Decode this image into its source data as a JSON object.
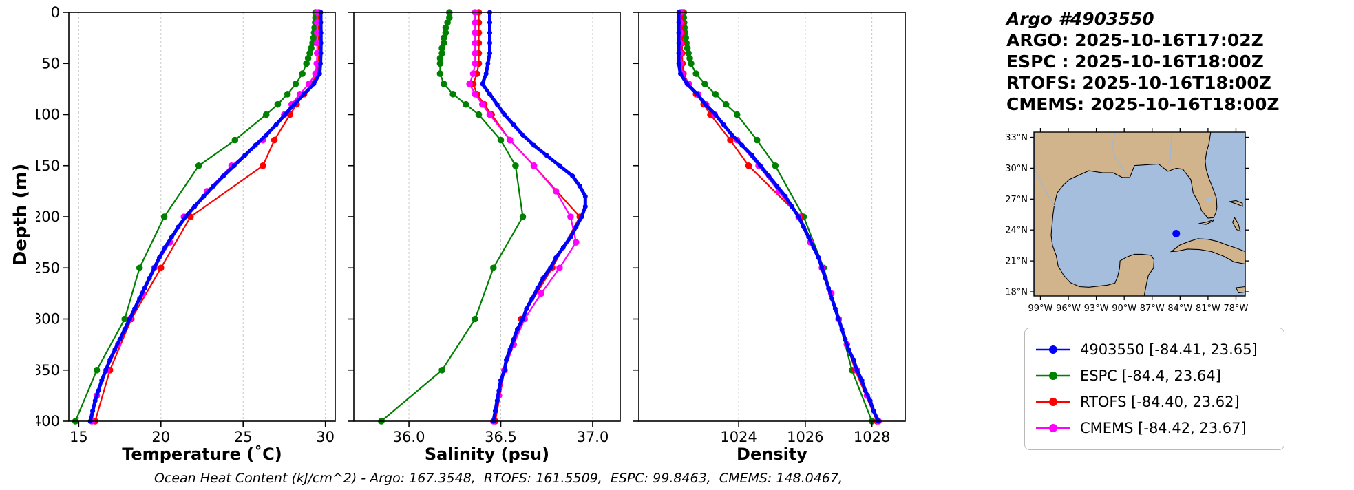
{
  "header": {
    "title": "Argo #4903550",
    "lines": [
      "ARGO: 2025-10-16T17:02Z",
      "ESPC : 2025-10-16T18:00Z",
      "RTOFS: 2025-10-16T18:00Z",
      "CMEMS: 2025-10-16T18:00Z"
    ]
  },
  "caption": "Ocean Heat Content (kJ/cm^2) - Argo: 167.3548,  RTOFS: 161.5509,  ESPC: 99.8463,  CMEMS: 148.0467,",
  "legend": {
    "items": [
      {
        "label": "4903550 [-84.41, 23.65]",
        "color": "#0000ff"
      },
      {
        "label": "ESPC [-84.4, 23.64]",
        "color": "#008000"
      },
      {
        "label": "RTOFS [-84.40, 23.62]",
        "color": "#ff0000"
      },
      {
        "label": "CMEMS [-84.42, 23.67]",
        "color": "#ff00ff"
      }
    ]
  },
  "map": {
    "lon_ticks": [
      "99°W",
      "96°W",
      "93°W",
      "90°W",
      "87°W",
      "84°W",
      "81°W",
      "78°W"
    ],
    "lat_ticks": [
      "33°N",
      "30°N",
      "27°N",
      "24°N",
      "21°N",
      "18°N"
    ],
    "float": {
      "lon": -84.41,
      "lat": 23.65,
      "color": "#0000ff"
    },
    "land_color": "#d2b48c",
    "water_color": "#a6bedd"
  },
  "chart_data": {
    "type": "line",
    "ylabel": "Depth (m)",
    "ylim": [
      0,
      400
    ],
    "depth_ticks": [
      0,
      50,
      100,
      150,
      200,
      250,
      300,
      350,
      400
    ],
    "grid": "vertical-dashed",
    "panels": [
      {
        "key": "temperature",
        "xlabel": "Temperature (˚C)",
        "xlim": [
          14.4,
          30.6
        ],
        "xticks": [
          15,
          20,
          25,
          30
        ],
        "xtick_labels": [
          "15",
          "20",
          "25",
          "30"
        ]
      },
      {
        "key": "salinity",
        "xlabel": "Salinity (psu)",
        "xlim": [
          35.7,
          37.15
        ],
        "xticks": [
          36.0,
          36.5,
          37.0
        ],
        "xtick_labels": [
          "36.0",
          "36.5",
          "37.0"
        ]
      },
      {
        "key": "density",
        "xlabel": "Density",
        "xlim": [
          1021.0,
          1029.0
        ],
        "xticks": [
          1024,
          1026,
          1028
        ],
        "xtick_labels": [
          "1024",
          "1026",
          "1028"
        ]
      }
    ],
    "series": [
      {
        "name": "4903550",
        "color": "#0000ff",
        "linewidth": 5,
        "marker_r": 3.5,
        "depth": [
          0,
          10,
          20,
          30,
          40,
          50,
          60,
          70,
          80,
          90,
          100,
          110,
          120,
          130,
          140,
          150,
          160,
          170,
          180,
          190,
          200,
          210,
          220,
          230,
          240,
          250,
          260,
          270,
          280,
          290,
          300,
          310,
          320,
          330,
          340,
          350,
          360,
          370,
          380,
          390,
          400
        ],
        "temperature": [
          29.72,
          29.72,
          29.73,
          29.73,
          29.72,
          29.7,
          29.65,
          29.3,
          28.7,
          28.1,
          27.55,
          27.0,
          26.4,
          25.75,
          25.1,
          24.45,
          23.8,
          23.2,
          22.6,
          22.05,
          21.5,
          21.05,
          20.65,
          20.25,
          19.9,
          19.6,
          19.3,
          19.0,
          18.7,
          18.4,
          18.1,
          17.8,
          17.5,
          17.2,
          16.9,
          16.65,
          16.4,
          16.2,
          16.0,
          15.85,
          15.7
        ],
        "salinity": [
          36.44,
          36.44,
          36.44,
          36.44,
          36.44,
          36.43,
          36.42,
          36.4,
          36.44,
          36.48,
          36.52,
          36.57,
          36.62,
          36.68,
          36.75,
          36.82,
          36.89,
          36.93,
          36.96,
          36.96,
          36.94,
          36.91,
          36.88,
          36.84,
          36.8,
          36.77,
          36.73,
          36.7,
          36.67,
          36.64,
          36.62,
          36.59,
          36.57,
          36.55,
          36.53,
          36.52,
          36.5,
          36.49,
          36.48,
          36.47,
          36.46
        ],
        "density": [
          1022.2,
          1022.2,
          1022.2,
          1022.2,
          1022.2,
          1022.2,
          1022.25,
          1022.45,
          1022.75,
          1023.0,
          1023.3,
          1023.55,
          1023.8,
          1024.1,
          1024.4,
          1024.65,
          1024.9,
          1025.15,
          1025.4,
          1025.6,
          1025.8,
          1025.95,
          1026.1,
          1026.25,
          1026.4,
          1026.5,
          1026.6,
          1026.7,
          1026.8,
          1026.9,
          1027.0,
          1027.1,
          1027.2,
          1027.3,
          1027.45,
          1027.55,
          1027.7,
          1027.8,
          1027.95,
          1028.05,
          1028.2
        ]
      },
      {
        "name": "ESPC",
        "color": "#008000",
        "linewidth": 2.2,
        "marker_r": 4.8,
        "depth": [
          0,
          5,
          10,
          15,
          20,
          25,
          30,
          35,
          40,
          45,
          50,
          60,
          70,
          80,
          90,
          100,
          125,
          150,
          200,
          250,
          300,
          350,
          400
        ],
        "temperature": [
          29.4,
          29.4,
          29.38,
          29.35,
          29.32,
          29.28,
          29.22,
          29.14,
          29.05,
          28.95,
          28.85,
          28.6,
          28.2,
          27.7,
          27.1,
          26.4,
          24.5,
          22.3,
          20.2,
          18.7,
          17.8,
          16.1,
          14.8
        ],
        "salinity": [
          36.22,
          36.22,
          36.21,
          36.2,
          36.2,
          36.19,
          36.19,
          36.18,
          36.18,
          36.17,
          36.17,
          36.17,
          36.19,
          36.24,
          36.31,
          36.38,
          36.5,
          36.58,
          36.62,
          36.46,
          36.36,
          36.18,
          35.85
        ],
        "density": [
          1022.35,
          1022.35,
          1022.36,
          1022.37,
          1022.39,
          1022.41,
          1022.43,
          1022.46,
          1022.49,
          1022.53,
          1022.57,
          1022.72,
          1022.98,
          1023.3,
          1023.62,
          1023.95,
          1024.55,
          1025.1,
          1025.95,
          1026.55,
          1027.0,
          1027.4,
          1028.0
        ]
      },
      {
        "name": "RTOFS",
        "color": "#ff0000",
        "linewidth": 2.2,
        "marker_r": 4.8,
        "depth": [
          0,
          10,
          20,
          30,
          40,
          50,
          60,
          70,
          80,
          90,
          100,
          125,
          150,
          200,
          250,
          300,
          350,
          400
        ],
        "temperature": [
          29.6,
          29.6,
          29.6,
          29.6,
          29.6,
          29.58,
          29.5,
          29.15,
          28.7,
          28.25,
          27.85,
          26.9,
          26.2,
          21.8,
          20.0,
          18.2,
          16.9,
          16.0
        ],
        "salinity": [
          36.38,
          36.38,
          36.38,
          36.38,
          36.38,
          36.38,
          36.37,
          36.35,
          36.37,
          36.41,
          36.45,
          36.55,
          36.68,
          36.93,
          36.78,
          36.61,
          36.52,
          36.47
        ],
        "density": [
          1022.3,
          1022.3,
          1022.3,
          1022.3,
          1022.3,
          1022.31,
          1022.34,
          1022.5,
          1022.72,
          1022.95,
          1023.15,
          1023.75,
          1024.3,
          1025.85,
          1026.5,
          1027.0,
          1027.5,
          1028.15
        ]
      },
      {
        "name": "CMEMS",
        "color": "#ff00ff",
        "linewidth": 2.2,
        "marker_r": 4.8,
        "depth": [
          0,
          10,
          20,
          30,
          40,
          50,
          60,
          70,
          80,
          90,
          100,
          125,
          150,
          175,
          200,
          225,
          250,
          275,
          300,
          325,
          350,
          375,
          400
        ],
        "temperature": [
          29.5,
          29.5,
          29.5,
          29.5,
          29.5,
          29.48,
          29.4,
          29.0,
          28.45,
          27.95,
          27.5,
          26.2,
          24.3,
          22.8,
          21.4,
          20.55,
          19.6,
          18.9,
          18.1,
          17.4,
          16.7,
          16.1,
          15.8
        ],
        "salinity": [
          36.36,
          36.36,
          36.36,
          36.36,
          36.36,
          36.36,
          36.35,
          36.33,
          36.36,
          36.4,
          36.44,
          36.55,
          36.68,
          36.8,
          36.88,
          36.91,
          36.82,
          36.72,
          36.63,
          36.57,
          36.52,
          36.49,
          36.46
        ],
        "density": [
          1022.25,
          1022.25,
          1022.25,
          1022.25,
          1022.25,
          1022.26,
          1022.3,
          1022.5,
          1022.78,
          1023.02,
          1023.28,
          1023.95,
          1024.6,
          1025.2,
          1025.8,
          1026.15,
          1026.5,
          1026.78,
          1027.0,
          1027.25,
          1027.55,
          1027.85,
          1028.2
        ]
      }
    ]
  }
}
